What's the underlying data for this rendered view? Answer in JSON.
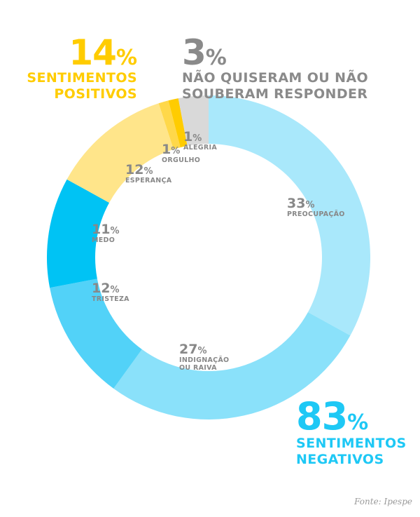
{
  "groups": {
    "positive": {
      "value": "14",
      "label_line1": "SENTIMENTOS",
      "label_line2": "POSITIVOS",
      "color": "#ffcc00"
    },
    "neutral": {
      "value": "3",
      "label_line1": "NÃO QUISERAM OU NÃO",
      "label_line2": "SOUBERAM RESPONDER",
      "color": "#8a8a8a"
    },
    "negative": {
      "value": "83",
      "label_line1": "SENTIMENTOS",
      "label_line2": "NEGATIVOS",
      "color": "#1ec8f5"
    },
    "percent_sign": "%"
  },
  "chart_data": {
    "type": "pie",
    "subtype": "donut",
    "start": "12 o'clock",
    "direction": "clockwise",
    "slices": [
      {
        "label_line1": "PREOCUPAÇÃO",
        "label_line2": "",
        "value": 33,
        "color": "#a9e8fb"
      },
      {
        "label_line1": "INDIGNAÇÃO",
        "label_line2": "OU RAIVA",
        "value": 27,
        "color": "#8ae1fa"
      },
      {
        "label_line1": "TRISTEZA",
        "label_line2": "",
        "value": 12,
        "color": "#52d2f8"
      },
      {
        "label_line1": "MEDO",
        "label_line2": "",
        "value": 11,
        "color": "#00c3f4"
      },
      {
        "label_line1": "ESPERANÇA",
        "label_line2": "",
        "value": 12,
        "color": "#ffe58a"
      },
      {
        "label_line1": "ORGULHO",
        "label_line2": "",
        "value": 1,
        "color": "#ffd84a"
      },
      {
        "label_line1": "ALEGRIA",
        "label_line2": "",
        "value": 1,
        "color": "#ffcc00"
      },
      {
        "label_line1": "",
        "label_line2": "",
        "value": 3,
        "color": "#d9d9d9"
      }
    ]
  },
  "source": "Fonte: Ipespe"
}
